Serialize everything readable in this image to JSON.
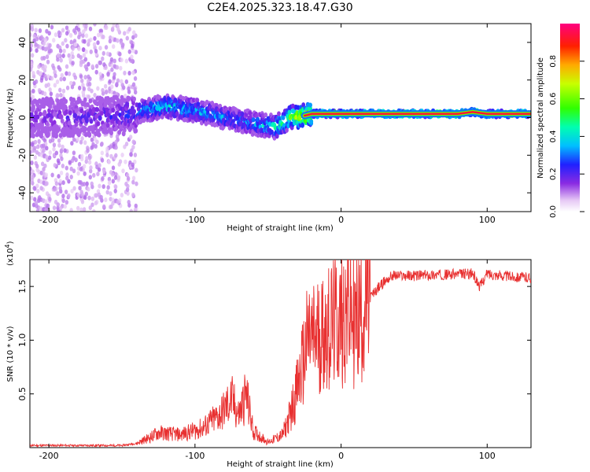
{
  "figure": {
    "title": "C2E4.2025.323.18.47.G30"
  },
  "chart_data": [
    {
      "type": "heatmap",
      "title": "C2E4.2025.323.18.47.G30",
      "xlabel": "Height of straight line (km)",
      "ylabel": "Frequency (Hz)",
      "xlim": [
        -213,
        130
      ],
      "ylim": [
        -50,
        50
      ],
      "xticks": [
        {
          "value": -200,
          "label": "-200"
        },
        {
          "value": -100,
          "label": "-100"
        },
        {
          "value": 0,
          "label": "0"
        },
        {
          "value": 100,
          "label": "100"
        }
      ],
      "yticks": [
        {
          "value": -40,
          "label": "-40"
        },
        {
          "value": -20,
          "label": "-20"
        },
        {
          "value": 0,
          "label": "0"
        },
        {
          "value": 20,
          "label": "20"
        },
        {
          "value": 40,
          "label": "40"
        }
      ],
      "colorbar": {
        "label": "Normalized spectral amplitude",
        "range": [
          0,
          1
        ],
        "ticks": [
          {
            "value": 0.0,
            "label": "0.0"
          },
          {
            "value": 0.2,
            "label": "0.2"
          },
          {
            "value": 0.4,
            "label": "0.4"
          },
          {
            "value": 0.6,
            "label": "0.6"
          },
          {
            "value": 0.8,
            "label": "0.8"
          }
        ]
      },
      "ridge": {
        "height_km": [
          -213,
          -180,
          -150,
          -135,
          -120,
          -100,
          -80,
          -60,
          -45,
          -35,
          -25,
          -20,
          -10,
          0,
          20,
          50,
          80,
          90,
          100,
          130
        ],
        "frequency_hz": [
          0,
          0,
          1,
          4,
          6,
          4,
          0,
          -3,
          -5,
          0,
          1,
          2,
          2,
          2,
          2,
          2,
          2,
          3,
          2,
          2
        ],
        "peak_amplitude": [
          0.2,
          0.2,
          0.25,
          0.35,
          0.45,
          0.4,
          0.35,
          0.35,
          0.5,
          0.65,
          0.85,
          0.95,
          0.95,
          0.95,
          0.95,
          0.95,
          0.95,
          0.9,
          0.95,
          0.9
        ]
      },
      "noise_region_km": [
        -213,
        -140
      ]
    },
    {
      "type": "line",
      "xlabel": "Height of straight line (km)",
      "ylabel": "SNR (10 * v/v)",
      "y_multiplier": "(x10",
      "y_multiplier_exp": "4",
      "y_multiplier_close": ")",
      "xlim": [
        -213,
        130
      ],
      "ylim": [
        0,
        1.75
      ],
      "xticks": [
        {
          "value": -200,
          "label": "-200"
        },
        {
          "value": -100,
          "label": "-100"
        },
        {
          "value": 0,
          "label": "0"
        },
        {
          "value": 100,
          "label": "100"
        }
      ],
      "yticks": [
        {
          "value": 0.5,
          "label": "0.5"
        },
        {
          "value": 1.0,
          "label": "1.0"
        },
        {
          "value": 1.5,
          "label": "1.5"
        }
      ],
      "series": [
        {
          "name": "SNR",
          "color": "#e83030",
          "x": [
            -213,
            -180,
            -150,
            -140,
            -130,
            -125,
            -110,
            -95,
            -85,
            -80,
            -75,
            -70,
            -65,
            -60,
            -50,
            -40,
            -35,
            -30,
            -25,
            -22,
            -20,
            -15,
            -10,
            -5,
            0,
            5,
            10,
            15,
            20,
            25,
            30,
            35,
            50,
            70,
            90,
            95,
            100,
            110,
            130
          ],
          "y": [
            0.02,
            0.02,
            0.02,
            0.04,
            0.1,
            0.14,
            0.12,
            0.18,
            0.28,
            0.35,
            0.45,
            0.3,
            0.5,
            0.15,
            0.05,
            0.12,
            0.3,
            0.55,
            0.85,
            1.05,
            1.0,
            1.05,
            1.1,
            1.15,
            1.2,
            1.3,
            1.15,
            1.3,
            1.4,
            1.48,
            1.55,
            1.6,
            1.6,
            1.61,
            1.62,
            1.5,
            1.62,
            1.6,
            1.58
          ]
        }
      ]
    }
  ]
}
